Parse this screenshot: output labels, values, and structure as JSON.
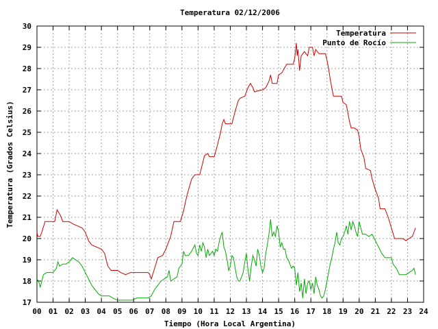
{
  "chart_data": {
    "type": "line",
    "title": "Temperatura 02/12/2006",
    "xlabel": "Tiempo (Hora Local Argentina)",
    "ylabel": "Temperatura (Grados Celsius)",
    "xlim": [
      0,
      24
    ],
    "ylim": [
      17,
      30
    ],
    "x_ticks": [
      "00",
      "01",
      "02",
      "03",
      "04",
      "05",
      "06",
      "07",
      "08",
      "09",
      "10",
      "11",
      "12",
      "13",
      "14",
      "15",
      "16",
      "17",
      "18",
      "19",
      "20",
      "21",
      "22",
      "23",
      "24"
    ],
    "y_ticks": [
      "17",
      "18",
      "19",
      "20",
      "21",
      "22",
      "23",
      "24",
      "25",
      "26",
      "27",
      "28",
      "29",
      "30"
    ],
    "grid": true,
    "legend_position": "top-right",
    "series": [
      {
        "name": "Temperatura",
        "color": "#cc0000",
        "points": [
          [
            0.0,
            20.3
          ],
          [
            0.05,
            20.1
          ],
          [
            0.2,
            20.1
          ],
          [
            0.3,
            20.3
          ],
          [
            0.5,
            20.8
          ],
          [
            0.8,
            20.8
          ],
          [
            1.1,
            20.8
          ],
          [
            1.25,
            21.35
          ],
          [
            1.45,
            21.1
          ],
          [
            1.6,
            20.8
          ],
          [
            2.0,
            20.8
          ],
          [
            2.2,
            20.7
          ],
          [
            2.5,
            20.6
          ],
          [
            2.8,
            20.5
          ],
          [
            3.0,
            20.3
          ],
          [
            3.2,
            19.9
          ],
          [
            3.4,
            19.7
          ],
          [
            3.7,
            19.6
          ],
          [
            4.0,
            19.5
          ],
          [
            4.2,
            19.3
          ],
          [
            4.3,
            19.0
          ],
          [
            4.4,
            18.7
          ],
          [
            4.6,
            18.5
          ],
          [
            5.0,
            18.5
          ],
          [
            5.2,
            18.4
          ],
          [
            5.5,
            18.3
          ],
          [
            5.8,
            18.4
          ],
          [
            6.0,
            18.4
          ],
          [
            6.5,
            18.4
          ],
          [
            6.9,
            18.4
          ],
          [
            7.0,
            18.3
          ],
          [
            7.1,
            18.1
          ],
          [
            7.3,
            18.6
          ],
          [
            7.5,
            19.1
          ],
          [
            7.8,
            19.2
          ],
          [
            8.0,
            19.5
          ],
          [
            8.3,
            20.1
          ],
          [
            8.5,
            20.8
          ],
          [
            8.9,
            20.8
          ],
          [
            9.1,
            21.3
          ],
          [
            9.3,
            22.0
          ],
          [
            9.6,
            22.8
          ],
          [
            9.8,
            23.0
          ],
          [
            10.1,
            23.0
          ],
          [
            10.3,
            23.6
          ],
          [
            10.4,
            23.9
          ],
          [
            10.6,
            24.0
          ],
          [
            10.7,
            23.85
          ],
          [
            11.0,
            23.85
          ],
          [
            11.2,
            24.4
          ],
          [
            11.4,
            25.0
          ],
          [
            11.5,
            25.4
          ],
          [
            11.6,
            25.6
          ],
          [
            11.7,
            25.4
          ],
          [
            12.1,
            25.4
          ],
          [
            12.3,
            26.0
          ],
          [
            12.5,
            26.5
          ],
          [
            12.6,
            26.6
          ],
          [
            12.9,
            26.7
          ],
          [
            13.1,
            27.1
          ],
          [
            13.25,
            27.3
          ],
          [
            13.4,
            27.1
          ],
          [
            13.5,
            26.9
          ],
          [
            13.7,
            26.95
          ],
          [
            14.0,
            27.0
          ],
          [
            14.2,
            27.1
          ],
          [
            14.4,
            27.4
          ],
          [
            14.5,
            27.7
          ],
          [
            14.6,
            27.3
          ],
          [
            14.9,
            27.3
          ],
          [
            15.0,
            27.7
          ],
          [
            15.2,
            27.8
          ],
          [
            15.5,
            28.2
          ],
          [
            15.7,
            28.2
          ],
          [
            15.9,
            28.2
          ],
          [
            16.0,
            28.5
          ],
          [
            16.1,
            29.2
          ],
          [
            16.15,
            28.6
          ],
          [
            16.2,
            28.9
          ],
          [
            16.3,
            27.9
          ],
          [
            16.4,
            28.6
          ],
          [
            16.6,
            28.8
          ],
          [
            16.8,
            28.6
          ],
          [
            16.9,
            29.0
          ],
          [
            17.1,
            29.0
          ],
          [
            17.2,
            28.6
          ],
          [
            17.3,
            28.9
          ],
          [
            17.5,
            28.7
          ],
          [
            17.7,
            28.7
          ],
          [
            17.9,
            28.7
          ],
          [
            18.0,
            28.4
          ],
          [
            18.1,
            28.0
          ],
          [
            18.2,
            27.5
          ],
          [
            18.3,
            27.1
          ],
          [
            18.4,
            26.7
          ],
          [
            18.6,
            26.7
          ],
          [
            18.9,
            26.7
          ],
          [
            19.0,
            26.4
          ],
          [
            19.2,
            26.3
          ],
          [
            19.3,
            25.9
          ],
          [
            19.4,
            25.5
          ],
          [
            19.5,
            25.2
          ],
          [
            19.7,
            25.2
          ],
          [
            19.9,
            25.1
          ],
          [
            20.0,
            24.8
          ],
          [
            20.1,
            24.2
          ],
          [
            20.3,
            23.8
          ],
          [
            20.4,
            23.3
          ],
          [
            20.7,
            23.2
          ],
          [
            20.8,
            22.8
          ],
          [
            21.0,
            22.3
          ],
          [
            21.2,
            21.9
          ],
          [
            21.3,
            21.4
          ],
          [
            21.6,
            21.4
          ],
          [
            21.8,
            21.0
          ],
          [
            22.0,
            20.5
          ],
          [
            22.2,
            20.0
          ],
          [
            22.5,
            20.0
          ],
          [
            22.7,
            20.0
          ],
          [
            22.9,
            19.9
          ],
          [
            23.1,
            20.0
          ],
          [
            23.3,
            20.1
          ],
          [
            23.4,
            20.3
          ],
          [
            23.5,
            20.5
          ]
        ]
      },
      {
        "name": "Punto de Rocío",
        "color": "#00aa00",
        "points": [
          [
            0.0,
            18.1
          ],
          [
            0.1,
            18.0
          ],
          [
            0.2,
            17.7
          ],
          [
            0.3,
            18.0
          ],
          [
            0.4,
            18.3
          ],
          [
            0.6,
            18.4
          ],
          [
            1.0,
            18.4
          ],
          [
            1.2,
            18.6
          ],
          [
            1.3,
            18.9
          ],
          [
            1.4,
            18.7
          ],
          [
            1.6,
            18.8
          ],
          [
            1.8,
            18.8
          ],
          [
            2.0,
            18.9
          ],
          [
            2.2,
            19.1
          ],
          [
            2.4,
            19.0
          ],
          [
            2.6,
            18.9
          ],
          [
            2.8,
            18.7
          ],
          [
            3.0,
            18.4
          ],
          [
            3.2,
            18.1
          ],
          [
            3.4,
            17.8
          ],
          [
            3.6,
            17.6
          ],
          [
            3.8,
            17.4
          ],
          [
            4.0,
            17.3
          ],
          [
            4.2,
            17.3
          ],
          [
            4.5,
            17.3
          ],
          [
            4.7,
            17.2
          ],
          [
            5.0,
            17.1
          ],
          [
            5.3,
            17.1
          ],
          [
            5.6,
            17.1
          ],
          [
            5.9,
            17.1
          ],
          [
            6.2,
            17.2
          ],
          [
            6.5,
            17.2
          ],
          [
            6.9,
            17.2
          ],
          [
            7.1,
            17.3
          ],
          [
            7.3,
            17.6
          ],
          [
            7.5,
            17.8
          ],
          [
            7.7,
            18.0
          ],
          [
            7.9,
            18.1
          ],
          [
            8.1,
            18.2
          ],
          [
            8.2,
            18.5
          ],
          [
            8.3,
            18.0
          ],
          [
            8.5,
            18.1
          ],
          [
            8.7,
            18.2
          ],
          [
            8.8,
            18.6
          ],
          [
            9.0,
            18.8
          ],
          [
            9.1,
            19.4
          ],
          [
            9.2,
            19.2
          ],
          [
            9.4,
            19.2
          ],
          [
            9.6,
            19.4
          ],
          [
            9.8,
            19.7
          ],
          [
            9.9,
            19.3
          ],
          [
            10.0,
            19.2
          ],
          [
            10.1,
            19.7
          ],
          [
            10.2,
            19.4
          ],
          [
            10.3,
            19.8
          ],
          [
            10.4,
            19.6
          ],
          [
            10.5,
            19.1
          ],
          [
            10.6,
            19.5
          ],
          [
            10.7,
            19.2
          ],
          [
            10.8,
            19.3
          ],
          [
            10.9,
            19.4
          ],
          [
            11.0,
            19.2
          ],
          [
            11.1,
            19.5
          ],
          [
            11.2,
            19.4
          ],
          [
            11.3,
            19.8
          ],
          [
            11.4,
            20.1
          ],
          [
            11.5,
            20.3
          ],
          [
            11.6,
            19.6
          ],
          [
            11.7,
            19.4
          ],
          [
            11.8,
            19.0
          ],
          [
            11.9,
            18.5
          ],
          [
            12.0,
            18.7
          ],
          [
            12.1,
            19.2
          ],
          [
            12.2,
            19.1
          ],
          [
            12.3,
            18.6
          ],
          [
            12.4,
            18.2
          ],
          [
            12.5,
            18.0
          ],
          [
            12.6,
            18.0
          ],
          [
            12.7,
            18.2
          ],
          [
            12.8,
            18.4
          ],
          [
            12.9,
            18.9
          ],
          [
            13.0,
            19.3
          ],
          [
            13.1,
            18.5
          ],
          [
            13.2,
            18.0
          ],
          [
            13.3,
            18.7
          ],
          [
            13.4,
            19.2
          ],
          [
            13.5,
            19.0
          ],
          [
            13.6,
            18.7
          ],
          [
            13.7,
            19.5
          ],
          [
            13.8,
            19.2
          ],
          [
            13.9,
            18.7
          ],
          [
            14.0,
            18.4
          ],
          [
            14.1,
            18.6
          ],
          [
            14.2,
            19.3
          ],
          [
            14.3,
            19.7
          ],
          [
            14.4,
            20.2
          ],
          [
            14.5,
            20.9
          ],
          [
            14.6,
            20.1
          ],
          [
            14.7,
            20.3
          ],
          [
            14.8,
            20.1
          ],
          [
            14.9,
            20.6
          ],
          [
            15.0,
            20.3
          ],
          [
            15.1,
            19.6
          ],
          [
            15.2,
            19.8
          ],
          [
            15.3,
            19.5
          ],
          [
            15.4,
            19.5
          ],
          [
            15.5,
            19.1
          ],
          [
            15.6,
            19.0
          ],
          [
            15.7,
            18.8
          ],
          [
            15.8,
            18.6
          ],
          [
            15.9,
            18.7
          ],
          [
            16.0,
            18.6
          ],
          [
            16.1,
            17.8
          ],
          [
            16.2,
            18.4
          ],
          [
            16.3,
            17.5
          ],
          [
            16.4,
            17.9
          ],
          [
            16.5,
            17.2
          ],
          [
            16.6,
            18.1
          ],
          [
            16.7,
            17.4
          ],
          [
            16.8,
            17.9
          ],
          [
            16.9,
            18.0
          ],
          [
            17.0,
            17.6
          ],
          [
            17.1,
            17.9
          ],
          [
            17.2,
            17.4
          ],
          [
            17.3,
            18.2
          ],
          [
            17.4,
            17.8
          ],
          [
            17.5,
            17.6
          ],
          [
            17.6,
            17.3
          ],
          [
            17.7,
            17.2
          ],
          [
            17.8,
            17.3
          ],
          [
            17.9,
            17.6
          ],
          [
            18.0,
            18.0
          ],
          [
            18.1,
            18.4
          ],
          [
            18.2,
            18.8
          ],
          [
            18.3,
            19.1
          ],
          [
            18.4,
            19.5
          ],
          [
            18.5,
            19.8
          ],
          [
            18.6,
            20.3
          ],
          [
            18.7,
            19.8
          ],
          [
            18.8,
            19.7
          ],
          [
            18.9,
            20.0
          ],
          [
            19.0,
            20.1
          ],
          [
            19.1,
            20.3
          ],
          [
            19.2,
            20.6
          ],
          [
            19.3,
            20.2
          ],
          [
            19.4,
            20.8
          ],
          [
            19.5,
            20.4
          ],
          [
            19.6,
            20.8
          ],
          [
            19.7,
            20.6
          ],
          [
            19.8,
            20.3
          ],
          [
            19.9,
            20.1
          ],
          [
            20.0,
            20.8
          ],
          [
            20.1,
            20.5
          ],
          [
            20.2,
            20.2
          ],
          [
            20.4,
            20.2
          ],
          [
            20.6,
            20.1
          ],
          [
            20.8,
            20.2
          ],
          [
            21.0,
            19.9
          ],
          [
            21.2,
            19.6
          ],
          [
            21.4,
            19.3
          ],
          [
            21.6,
            19.1
          ],
          [
            21.8,
            19.1
          ],
          [
            22.0,
            19.1
          ],
          [
            22.1,
            18.8
          ],
          [
            22.3,
            18.6
          ],
          [
            22.5,
            18.3
          ],
          [
            22.7,
            18.3
          ],
          [
            22.9,
            18.3
          ],
          [
            23.1,
            18.4
          ],
          [
            23.3,
            18.5
          ],
          [
            23.4,
            18.6
          ],
          [
            23.5,
            18.3
          ]
        ]
      }
    ]
  }
}
